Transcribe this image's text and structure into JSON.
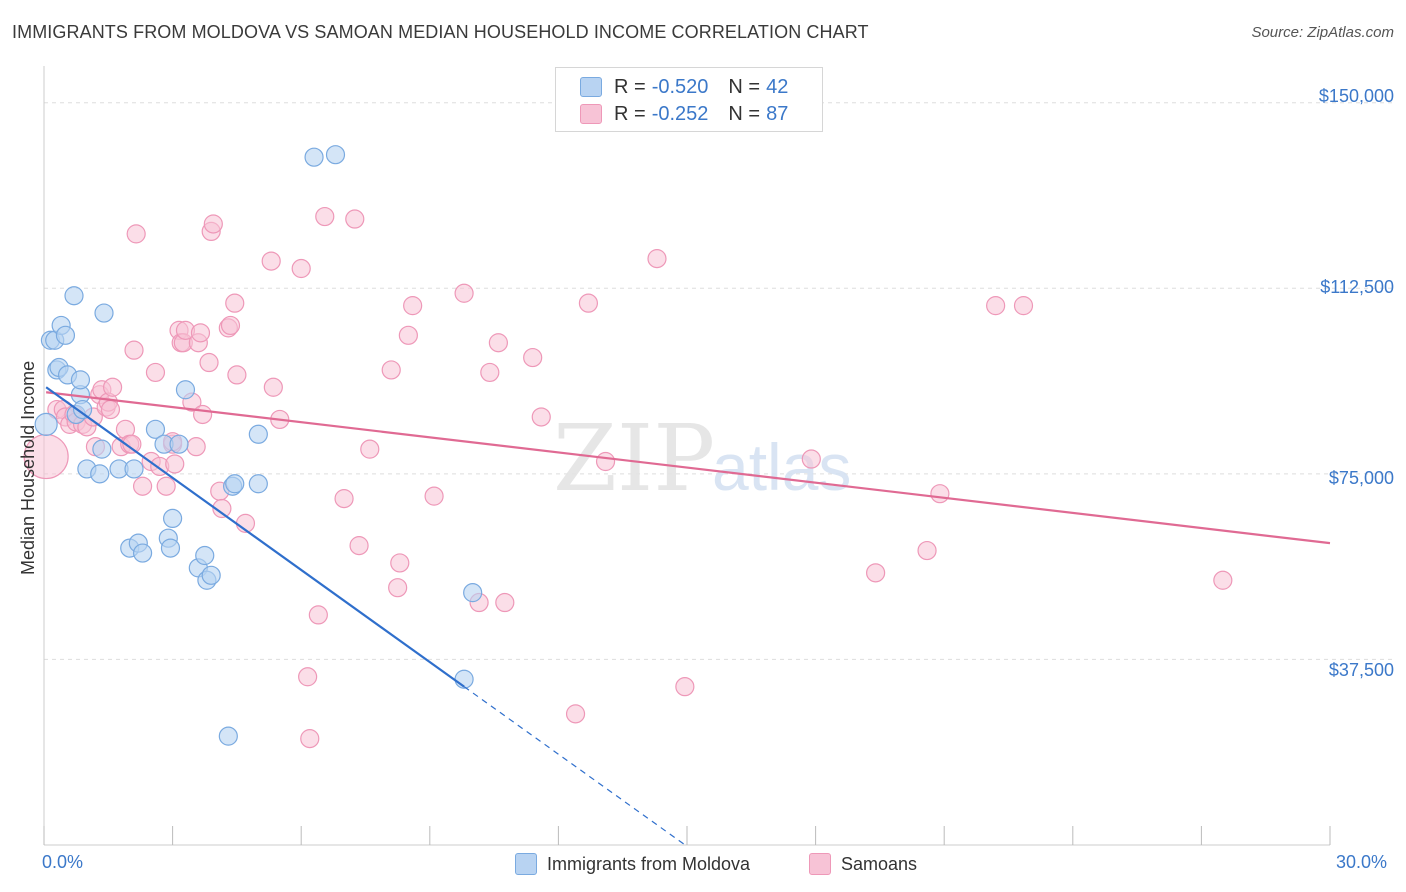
{
  "header": {
    "title": "IMMIGRANTS FROM MOLDOVA VS SAMOAN MEDIAN HOUSEHOLD INCOME CORRELATION CHART",
    "source": "Source: ZipAtlas.com"
  },
  "watermark": {
    "zip": "ZIP",
    "atlas": "atlas"
  },
  "legend": {
    "r_label": "R =",
    "n_label": "N =",
    "rows": [
      {
        "r": "-0.520",
        "n": "42"
      },
      {
        "r": "-0.252",
        "n": "87"
      }
    ]
  },
  "colors": {
    "blue_fill": "#b8d3f2",
    "blue_stroke": "#7aaae0",
    "blue_line": "#2f6fcc",
    "pink_fill": "#f7c3d6",
    "pink_stroke": "#ee98b8",
    "pink_line": "#e06a93",
    "grid": "#dddddd",
    "tick_text": "#3b78c9"
  },
  "chart_data": {
    "type": "scatter",
    "title": "IMMIGRANTS FROM MOLDOVA VS SAMOAN MEDIAN HOUSEHOLD INCOME CORRELATION CHART",
    "xlabel": "",
    "ylabel": "Median Household Income",
    "xlim": [
      0,
      30
    ],
    "ylim": [
      0,
      155000
    ],
    "x_tick_labels": [
      "0.0%",
      "30.0%"
    ],
    "y_ticks": [
      37500,
      75000,
      112500,
      150000
    ],
    "y_tick_labels": [
      "$37,500",
      "$75,000",
      "$112,500",
      "$150,000"
    ],
    "grid": true,
    "legend_position": "top-center",
    "series": [
      {
        "name": "Immigrants from Moldova",
        "r": -0.52,
        "n": 42,
        "trend": {
          "x0": 0.05,
          "y0": 92500,
          "x1": 9.8,
          "y1": 32000,
          "dash_to_x": 15.0
        },
        "points": [
          [
            0.05,
            85000
          ],
          [
            0.15,
            102000
          ],
          [
            0.25,
            102000
          ],
          [
            0.3,
            96000
          ],
          [
            0.35,
            96500
          ],
          [
            0.4,
            105000
          ],
          [
            0.5,
            103000
          ],
          [
            0.55,
            95000
          ],
          [
            0.7,
            111000
          ],
          [
            0.75,
            87000
          ],
          [
            0.85,
            91000
          ],
          [
            0.85,
            94000
          ],
          [
            0.9,
            88000
          ],
          [
            1.0,
            76000
          ],
          [
            1.3,
            75000
          ],
          [
            1.35,
            80000
          ],
          [
            1.4,
            107500
          ],
          [
            1.75,
            76000
          ],
          [
            2.0,
            60000
          ],
          [
            2.1,
            76000
          ],
          [
            2.2,
            61000
          ],
          [
            2.3,
            59000
          ],
          [
            2.6,
            84000
          ],
          [
            2.8,
            81000
          ],
          [
            2.9,
            62000
          ],
          [
            2.95,
            60000
          ],
          [
            3.0,
            66000
          ],
          [
            3.15,
            81000
          ],
          [
            3.3,
            92000
          ],
          [
            3.6,
            56000
          ],
          [
            3.75,
            58500
          ],
          [
            3.8,
            53500
          ],
          [
            3.9,
            54500
          ],
          [
            4.3,
            22000
          ],
          [
            4.4,
            72500
          ],
          [
            5.0,
            83000
          ],
          [
            5.0,
            73000
          ],
          [
            6.3,
            139000
          ],
          [
            6.8,
            139500
          ],
          [
            10.0,
            51000
          ],
          [
            9.8,
            33500
          ],
          [
            4.45,
            73000
          ]
        ]
      },
      {
        "name": "Samoans",
        "r": -0.252,
        "n": 87,
        "trend": {
          "x0": 0.05,
          "y0": 91500,
          "x1": 30.0,
          "y1": 61000
        },
        "points": [
          [
            0.05,
            78500
          ],
          [
            0.3,
            88000
          ],
          [
            0.45,
            88000
          ],
          [
            0.5,
            86500
          ],
          [
            0.6,
            85000
          ],
          [
            0.7,
            87000
          ],
          [
            0.75,
            85500
          ],
          [
            0.9,
            85000
          ],
          [
            1.0,
            84500
          ],
          [
            1.15,
            86500
          ],
          [
            1.2,
            80500
          ],
          [
            1.3,
            91000
          ],
          [
            1.35,
            92000
          ],
          [
            1.45,
            88500
          ],
          [
            1.5,
            89500
          ],
          [
            1.55,
            88000
          ],
          [
            1.6,
            92500
          ],
          [
            1.8,
            80500
          ],
          [
            1.9,
            84000
          ],
          [
            2.0,
            81000
          ],
          [
            2.05,
            81000
          ],
          [
            2.1,
            100000
          ],
          [
            2.15,
            123500
          ],
          [
            2.3,
            72500
          ],
          [
            2.5,
            77500
          ],
          [
            2.6,
            95500
          ],
          [
            2.7,
            76500
          ],
          [
            2.85,
            72500
          ],
          [
            3.0,
            81000
          ],
          [
            3.05,
            77000
          ],
          [
            3.15,
            104000
          ],
          [
            3.2,
            101500
          ],
          [
            3.25,
            101500
          ],
          [
            3.3,
            104000
          ],
          [
            3.45,
            89500
          ],
          [
            3.55,
            80500
          ],
          [
            3.6,
            101500
          ],
          [
            3.65,
            103500
          ],
          [
            3.7,
            87000
          ],
          [
            3.85,
            97500
          ],
          [
            3.9,
            124000
          ],
          [
            3.95,
            125500
          ],
          [
            4.1,
            71500
          ],
          [
            4.15,
            68000
          ],
          [
            4.3,
            104500
          ],
          [
            4.35,
            105000
          ],
          [
            4.45,
            109500
          ],
          [
            4.5,
            95000
          ],
          [
            4.7,
            65000
          ],
          [
            5.3,
            118000
          ],
          [
            5.35,
            92500
          ],
          [
            5.5,
            86000
          ],
          [
            6.0,
            116500
          ],
          [
            6.15,
            34000
          ],
          [
            6.2,
            21500
          ],
          [
            6.4,
            46500
          ],
          [
            6.55,
            127000
          ],
          [
            7.0,
            70000
          ],
          [
            7.25,
            126500
          ],
          [
            7.35,
            60500
          ],
          [
            7.6,
            80000
          ],
          [
            8.1,
            96000
          ],
          [
            8.25,
            52000
          ],
          [
            8.3,
            57000
          ],
          [
            8.5,
            103000
          ],
          [
            8.6,
            109000
          ],
          [
            9.1,
            70500
          ],
          [
            9.8,
            111500
          ],
          [
            10.15,
            49000
          ],
          [
            10.4,
            95500
          ],
          [
            10.6,
            101500
          ],
          [
            10.75,
            49000
          ],
          [
            11.4,
            98500
          ],
          [
            11.6,
            86500
          ],
          [
            12.4,
            26500
          ],
          [
            12.7,
            109500
          ],
          [
            13.1,
            77500
          ],
          [
            14.3,
            118500
          ],
          [
            14.95,
            32000
          ],
          [
            17.9,
            78000
          ],
          [
            19.4,
            55000
          ],
          [
            20.6,
            59500
          ],
          [
            20.9,
            71000
          ],
          [
            22.2,
            109000
          ],
          [
            22.85,
            109000
          ],
          [
            27.5,
            53500
          ],
          [
            3.0,
            81500
          ]
        ]
      }
    ]
  },
  "bottom_legend": {
    "items": [
      "Immigrants from Moldova",
      "Samoans"
    ]
  }
}
